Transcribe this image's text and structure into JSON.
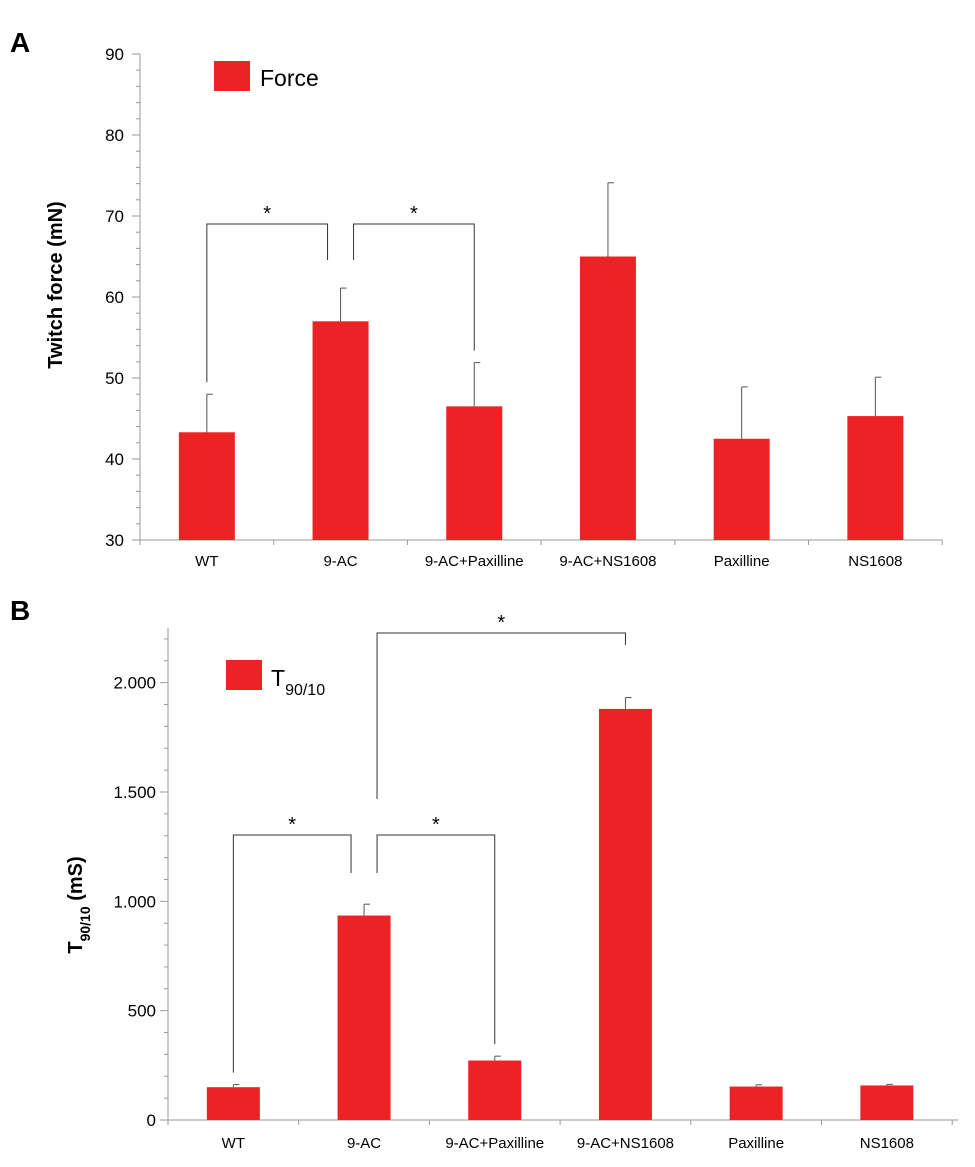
{
  "chart_data": [
    {
      "panel": "A",
      "type": "bar",
      "title": "",
      "xlabel": "",
      "ylabel": "Twitch force (mN)",
      "ylim": [
        30,
        90
      ],
      "yticks": [
        30,
        40,
        50,
        60,
        70,
        80,
        90
      ],
      "ytick_labels": [
        "30",
        "40",
        "50",
        "60",
        "70",
        "80",
        "90"
      ],
      "categories": [
        "WT",
        "9-AC",
        "9-AC+Paxilline",
        "9-AC+NS1608",
        "Paxilline",
        "NS1608"
      ],
      "series": [
        {
          "name": "Force",
          "color": "#ed2224",
          "values": [
            43.3,
            57.0,
            46.5,
            65.0,
            42.5,
            45.3
          ],
          "errors": [
            4.7,
            4.1,
            5.4,
            9.1,
            6.4,
            4.8
          ]
        }
      ],
      "legend": {
        "labels": [
          "Force"
        ],
        "position": "top-left"
      },
      "significance": [
        {
          "from": "WT",
          "to": "9-AC",
          "label": "*"
        },
        {
          "from": "9-AC",
          "to": "9-AC+Paxilline",
          "label": "*"
        }
      ]
    },
    {
      "panel": "B",
      "type": "bar",
      "title": "",
      "xlabel": "",
      "ylabel_main": "T",
      "ylabel_sub": "90/10",
      "ylabel_unit": " (mS)",
      "ylim": [
        0,
        2250
      ],
      "yticks": [
        0,
        500,
        1000,
        1500,
        2000
      ],
      "ytick_labels": [
        "0",
        "500",
        "1.000",
        "1.500",
        "2.000"
      ],
      "categories": [
        "WT",
        "9-AC",
        "9-AC+Paxilline",
        "9-AC+NS1608",
        "Paxilline",
        "NS1608"
      ],
      "series": [
        {
          "name": "T90/10",
          "color": "#ed2224",
          "values": [
            150,
            935,
            272,
            1880,
            153,
            158
          ],
          "errors": [
            12,
            52,
            20,
            52,
            8,
            5
          ]
        }
      ],
      "legend": {
        "labels": [
          "T90/10"
        ],
        "main": "T",
        "sub": "90/10",
        "position": "top-left"
      },
      "significance": [
        {
          "from": "WT",
          "to": "9-AC",
          "label": "*"
        },
        {
          "from": "9-AC",
          "to": "9-AC+Paxilline",
          "label": "*"
        },
        {
          "from": "9-AC",
          "to": "9-AC+NS1608",
          "label": "*"
        }
      ]
    }
  ]
}
